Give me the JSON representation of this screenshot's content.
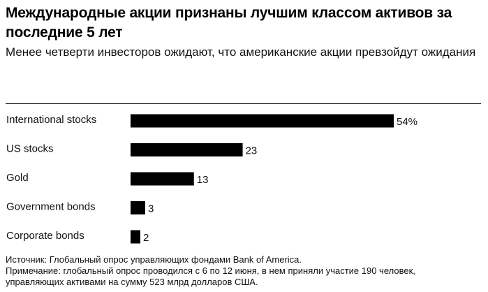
{
  "header": {
    "title": "Международные акции признаны лучшим классом активов за последние 5 лет",
    "subtitle": "Менее четверти инвесторов ожидают, что американские акции превзойдут ожидания"
  },
  "footnote": {
    "source": "Источник: Глобальный опрос управляющих фондами Bank of America.",
    "note_line1": "Примечание: глобальный опрос проводился с 6 по 12 июня, в нем приняли участие 190 человек,",
    "note_line2": "управляющих активами на сумму 523 млрд долларов США."
  },
  "colors": {
    "bar": "#000000",
    "text": "#111111",
    "background": "#ffffff"
  },
  "chart_data": {
    "type": "bar",
    "orientation": "horizontal",
    "categories": [
      "International stocks",
      "US stocks",
      "Gold",
      "Government bonds",
      "Corporate bonds"
    ],
    "values": [
      54,
      23,
      13,
      3,
      2
    ],
    "value_labels": [
      "54%",
      "23",
      "13",
      "3",
      "2"
    ],
    "unit": "%",
    "xlim": [
      0,
      54
    ],
    "grid": false,
    "legend": "none"
  }
}
